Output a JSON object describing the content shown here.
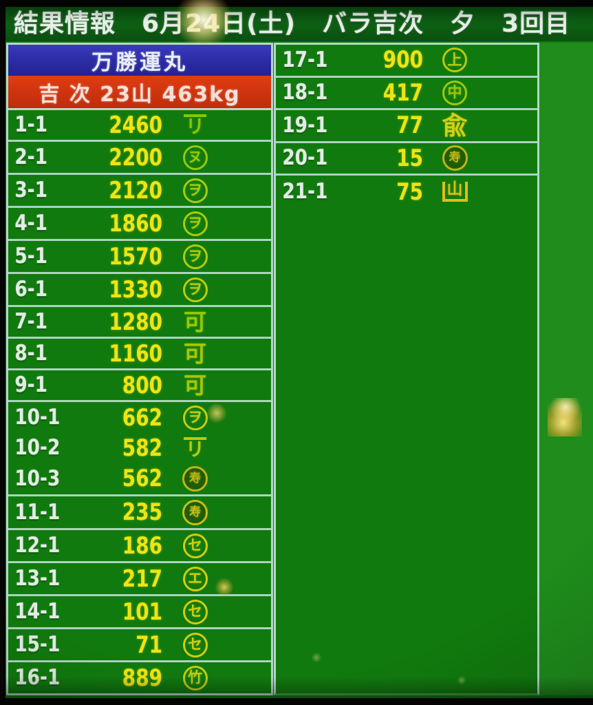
{
  "header": {
    "segments": [
      "結果情報",
      "6月24日(土)",
      "バラ吉次",
      "夕",
      "3回目"
    ]
  },
  "left_table": {
    "boat_name": "万勝運丸",
    "lot_summary": "吉 次 23山 463kg",
    "rows": [
      {
        "label": "1-1",
        "value": "2460",
        "mark": {
          "style": "overline",
          "char": "リ",
          "color": "#8cc407"
        }
      },
      {
        "label": "2-1",
        "value": "2200",
        "mark": {
          "style": "circle",
          "char": "ヌ",
          "color": "#96c80a"
        }
      },
      {
        "label": "3-1",
        "value": "2120",
        "mark": {
          "style": "circle",
          "char": "ヲ",
          "color": "#aacc0a"
        }
      },
      {
        "label": "4-1",
        "value": "1860",
        "mark": {
          "style": "circle",
          "char": "ヲ",
          "color": "#aacc0a"
        }
      },
      {
        "label": "5-1",
        "value": "1570",
        "mark": {
          "style": "circle",
          "char": "ヲ",
          "color": "#b2cc0a"
        }
      },
      {
        "label": "6-1",
        "value": "1330",
        "mark": {
          "style": "circle",
          "char": "ヲ",
          "color": "#becc0a"
        }
      },
      {
        "label": "7-1",
        "value": "1280",
        "mark": {
          "style": "plain",
          "char": "可",
          "color": "#98c806"
        }
      },
      {
        "label": "8-1",
        "value": "1160",
        "mark": {
          "style": "plain",
          "char": "可",
          "color": "#aac606"
        }
      },
      {
        "label": "9-1",
        "value": "800",
        "mark": {
          "style": "plain",
          "char": "可",
          "color": "#aac606"
        }
      },
      {
        "label": "10-1",
        "value": "662",
        "mark": {
          "style": "circle",
          "char": "ヲ",
          "color": "#c8cc12"
        },
        "no_sep_below": true
      },
      {
        "label": "10-2",
        "value": "582",
        "mark": {
          "style": "overline",
          "char": "リ",
          "color": "#bec80e"
        },
        "no_sep_below": true
      },
      {
        "label": "10-3",
        "value": "562",
        "mark": {
          "style": "circle-dense",
          "char": "寿",
          "color": "#c2b412"
        }
      },
      {
        "label": "11-1",
        "value": "235",
        "mark": {
          "style": "circle-dense",
          "char": "寿",
          "color": "#c8be14"
        }
      },
      {
        "label": "12-1",
        "value": "186",
        "mark": {
          "style": "circle",
          "char": "セ",
          "color": "#d4cc10"
        }
      },
      {
        "label": "13-1",
        "value": "217",
        "mark": {
          "style": "circle",
          "char": "エ",
          "color": "#d4cc10"
        }
      },
      {
        "label": "14-1",
        "value": "101",
        "mark": {
          "style": "circle",
          "char": "セ",
          "color": "#d4cc10"
        }
      },
      {
        "label": "15-1",
        "value": "71",
        "mark": {
          "style": "circle",
          "char": "セ",
          "color": "#d4cc10"
        }
      },
      {
        "label": "16-1",
        "value": "889",
        "mark": {
          "style": "circle",
          "char": "竹",
          "color": "#c4cc10"
        }
      }
    ]
  },
  "right_table": {
    "rows": [
      {
        "label": "17-1",
        "value": "900",
        "mark": {
          "style": "circle",
          "char": "上",
          "color": "#bcc80c"
        }
      },
      {
        "label": "18-1",
        "value": "417",
        "mark": {
          "style": "circle",
          "char": "中",
          "color": "#9ec80a"
        }
      },
      {
        "label": "19-1",
        "value": "77",
        "mark": {
          "style": "plain-large",
          "char": "兪",
          "color": "#d8cc12"
        }
      },
      {
        "label": "20-1",
        "value": "15",
        "mark": {
          "style": "circle-dense",
          "char": "寿",
          "color": "#c2b412"
        }
      },
      {
        "label": "21-1",
        "value": "75",
        "mark": {
          "style": "box",
          "char": "山",
          "color": "#e2bc1a"
        },
        "no_sep_below": true
      }
    ]
  },
  "palette": {
    "screen_green": "#117a0e",
    "header_band_green": "#0d5f13",
    "right_margin_green": "#1f8c1c",
    "grid_line": "#b9dacf",
    "label_white": "#e3ece5",
    "value_yellow": "#eee413",
    "boat_row_blue": "#2a2aa2",
    "lot_row_red": "#cd330e"
  }
}
